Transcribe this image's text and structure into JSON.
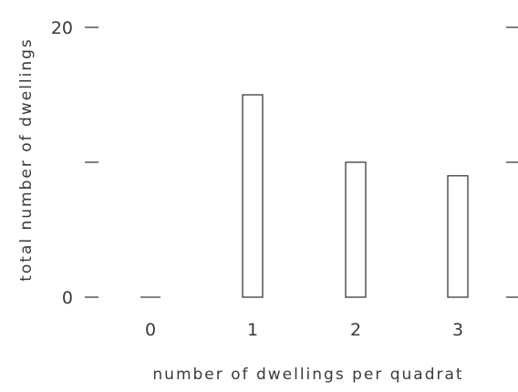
{
  "chart_data": {
    "type": "bar",
    "title": "",
    "xlabel": "number of dwellings per quadrat",
    "ylabel": "total number of dwellings",
    "categories": [
      "0",
      "1",
      "2",
      "3"
    ],
    "values": [
      0,
      15,
      10,
      9
    ],
    "ylim": [
      0,
      20
    ],
    "y_tick_values": [
      0,
      10,
      20
    ],
    "y_tick_labels": [
      "0",
      "",
      "20"
    ],
    "grid": false
  }
}
